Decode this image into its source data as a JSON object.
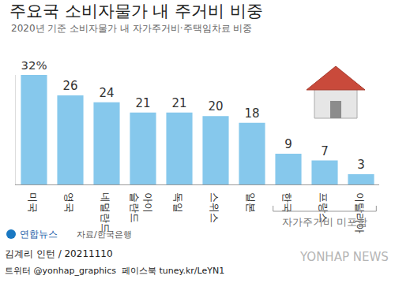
{
  "chart_data": {
    "type": "bar",
    "title": "주요국 소비자물가 내 주거비 비중",
    "subtitle": "2020년 기준 소비자물가 내 자가주거비·주택임차료 비중",
    "categories": [
      "미국",
      "영국",
      "네덜란드",
      "아이\n슬란드",
      "독일",
      "스위스",
      "일본",
      "한국",
      "프랑스",
      "이탈리아"
    ],
    "values": [
      32,
      26,
      24,
      21,
      21,
      20,
      18,
      9,
      7,
      3
    ],
    "value_labels": [
      "32%",
      "26",
      "24",
      "21",
      "21",
      "20",
      "18",
      "9",
      "7",
      "3"
    ],
    "color": "#86c8ec",
    "data_labels": true,
    "tick_labels": "x",
    "grid": false,
    "ylim": [
      0,
      32
    ],
    "yticks": [],
    "annotations": [
      {
        "text": "자가주거비 미포함",
        "categories": [
          "한국",
          "프랑스",
          "이탈리아"
        ]
      }
    ],
    "logo": "연합뉴스",
    "source": "자료/한국은행",
    "byline": "김계리 인턴 / 20211110",
    "social": "트위터 @yonhap_graphics  페이스북 tuney.kr/LeYN1",
    "watermark": "YONHAP NEWS"
  }
}
